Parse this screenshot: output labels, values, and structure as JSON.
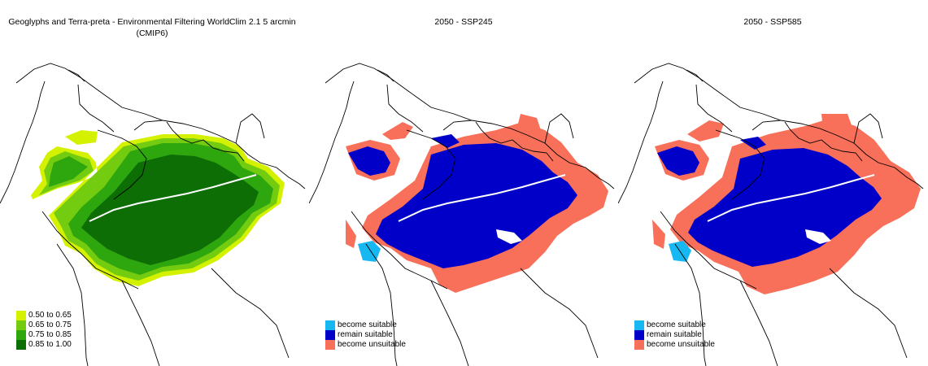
{
  "colors": {
    "c050": "#d4f200",
    "c065": "#73cc10",
    "c075": "#2ea60d",
    "c085": "#0d6e06",
    "become_suitable": "#17b8f2",
    "remain_suitable": "#0000c8",
    "become_unsuitable": "#f8705a",
    "border": "#000000"
  },
  "panels": [
    {
      "title": "Geoglyphs and Terra-preta - Environmental Filtering WorldClim 2.1 5 arcmin (CMIP6)",
      "legend": [
        {
          "label": "0.50 to 0.65",
          "color_key": "c050"
        },
        {
          "label": "0.65 to 0.75",
          "color_key": "c065"
        },
        {
          "label": "0.75 to 0.85",
          "color_key": "c075"
        },
        {
          "label": "0.85 to 1.00",
          "color_key": "c085"
        }
      ]
    },
    {
      "title": "2050 - SSP245",
      "legend": [
        {
          "label": "become suitable",
          "color_key": "become_suitable"
        },
        {
          "label": "remain suitable",
          "color_key": "remain_suitable"
        },
        {
          "label": "become unsuitable",
          "color_key": "become_unsuitable"
        }
      ]
    },
    {
      "title": "2050 - SSP585",
      "legend": [
        {
          "label": "become suitable",
          "color_key": "become_suitable"
        },
        {
          "label": "remain suitable",
          "color_key": "remain_suitable"
        },
        {
          "label": "become unsuitable",
          "color_key": "become_unsuitable"
        }
      ]
    }
  ]
}
